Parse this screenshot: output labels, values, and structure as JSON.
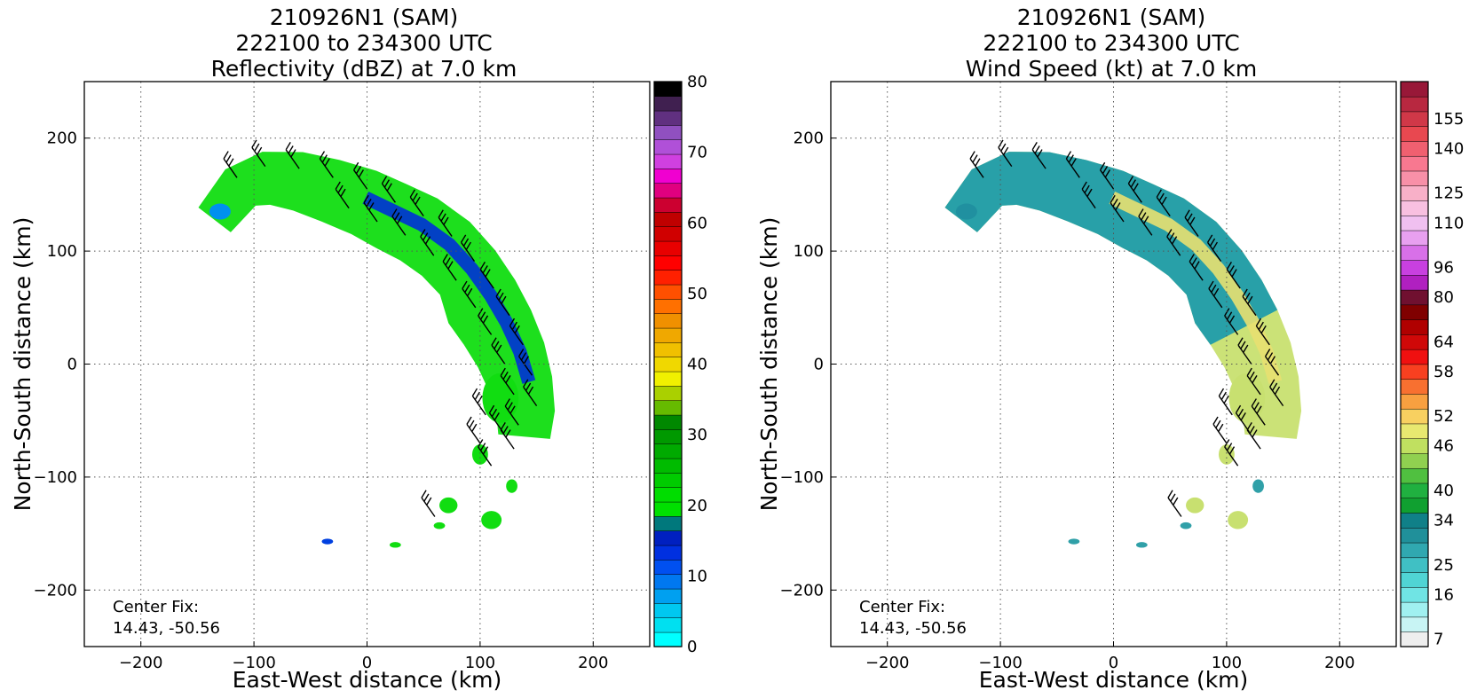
{
  "chart_data": [
    {
      "type": "heatmap",
      "title_lines": [
        "210926N1 (SAM)",
        "222100 to 234300 UTC",
        "Reflectivity (dBZ) at 7.0 km"
      ],
      "xlabel": "East-West distance (km)",
      "ylabel": "North-South distance (km)",
      "xlim": [
        -250,
        250
      ],
      "ylim": [
        -250,
        250
      ],
      "xticks": [
        -200,
        -100,
        0,
        100,
        200
      ],
      "yticks": [
        -200,
        -100,
        0,
        100,
        200
      ],
      "grid": true,
      "annotation_lines": [
        "Center Fix:",
        "14.43, -50.56"
      ],
      "colorbar": {
        "range": [
          0,
          80
        ],
        "ticks": [
          0,
          10,
          20,
          30,
          40,
          50,
          60,
          70,
          80
        ],
        "colors": [
          "#00ffff",
          "#00e0f0",
          "#00c8f0",
          "#00a0f0",
          "#0078f0",
          "#0050f0",
          "#0030e0",
          "#0020c0",
          "#00787c",
          "#00e000",
          "#00dd00",
          "#00cc00",
          "#00bb00",
          "#00aa00",
          "#009900",
          "#008800",
          "#66bb00",
          "#aad000",
          "#f0f000",
          "#f0d800",
          "#f0c000",
          "#f0a800",
          "#f09000",
          "#ff7000",
          "#ff5000",
          "#ff2000",
          "#ff0000",
          "#e80000",
          "#d00000",
          "#c00000",
          "#cc0030",
          "#e00080",
          "#f000d0",
          "#d040e0",
          "#b050d8",
          "#9050c0",
          "#603080",
          "#402050",
          "#000000"
        ]
      },
      "wind_barbs": "shown"
    },
    {
      "type": "heatmap",
      "title_lines": [
        "210926N1 (SAM)",
        "222100 to 234300 UTC",
        "Wind Speed (kt) at 7.0 km"
      ],
      "xlabel": "East-West distance (km)",
      "ylabel": "North-South distance (km)",
      "xlim": [
        -250,
        250
      ],
      "ylim": [
        -250,
        250
      ],
      "xticks": [
        -200,
        -100,
        0,
        100,
        200
      ],
      "yticks": [
        -200,
        -100,
        0,
        100,
        200
      ],
      "grid": true,
      "annotation_lines": [
        "Center Fix:",
        "14.43, -50.56"
      ],
      "colorbar": {
        "labels": [
          "7",
          "16",
          "25",
          "34",
          "40",
          "46",
          "52",
          "58",
          "64",
          "80",
          "96",
          "110",
          "125",
          "140",
          "155"
        ],
        "colors": [
          "#eeeeee",
          "#c8f4f4",
          "#a0f0f0",
          "#70e4e4",
          "#50d4d4",
          "#40c0c4",
          "#30a8b0",
          "#20909a",
          "#108088",
          "#10a030",
          "#20b040",
          "#50c040",
          "#90d050",
          "#c0e060",
          "#e8e870",
          "#f8d060",
          "#f8a040",
          "#f87030",
          "#f84020",
          "#f01010",
          "#d00808",
          "#b00000",
          "#800000",
          "#701030",
          "#b020c0",
          "#c840e0",
          "#d870e8",
          "#e8a0f0",
          "#f0c0f0",
          "#f8c0e0",
          "#f8b0c8",
          "#f890a8",
          "#f87890",
          "#f06070",
          "#e84850",
          "#d03848",
          "#b82840",
          "#981838"
        ]
      },
      "wind_barbs": "shown"
    }
  ]
}
